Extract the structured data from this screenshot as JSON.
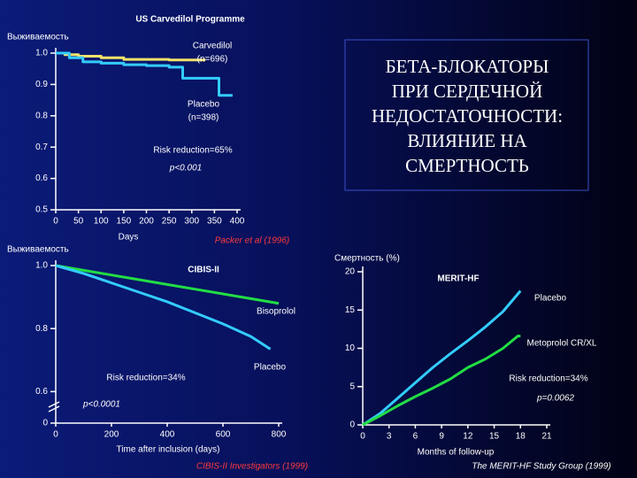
{
  "slide": {
    "heading": [
      "БЕТА-БЛОКАТОРЫ",
      "ПРИ СЕРДЕЧНОЙ",
      "НЕДОСТАТОЧНОСТИ:",
      "ВЛИЯНИЕ НА",
      "СМЕРТНОСТЬ"
    ]
  },
  "chart_data": [
    {
      "type": "line",
      "step": true,
      "title": "US Carvedilol Programme",
      "ylabel": "Выживаемость",
      "xlabel": "Days",
      "xlim": [
        0,
        400
      ],
      "xticks": [
        0,
        50,
        100,
        150,
        200,
        250,
        300,
        350,
        400
      ],
      "ylim": [
        0.5,
        1.0
      ],
      "yticks": [
        {
          "value": 1.0,
          "label": "1.0"
        },
        0.9,
        0.8,
        0.7,
        0.6,
        0.5
      ],
      "series": [
        {
          "name": "Carvedilol",
          "note": "(n=696)",
          "color": "#f2e36a",
          "x": [
            0,
            20,
            50,
            100,
            150,
            200,
            250,
            300,
            330
          ],
          "values": [
            1.0,
            0.995,
            0.99,
            0.985,
            0.98,
            0.98,
            0.978,
            0.978,
            0.978
          ]
        },
        {
          "name": "Placebo",
          "note": "(n=398)",
          "color": "#33ccff",
          "x": [
            0,
            30,
            60,
            100,
            150,
            200,
            250,
            280,
            330,
            360,
            390
          ],
          "values": [
            1.0,
            0.985,
            0.972,
            0.968,
            0.963,
            0.96,
            0.955,
            0.92,
            0.92,
            0.865,
            0.865
          ]
        }
      ],
      "annotations": [
        "Risk reduction=65%",
        "p<0.001"
      ],
      "source": "Packer et al (1996)"
    },
    {
      "type": "line",
      "axis_break": true,
      "title": "CIBIS-II",
      "ylabel": "Выживаемость",
      "xlabel": "Time after inclusion (days)",
      "xlim": [
        0,
        800
      ],
      "xticks": [
        0,
        200,
        400,
        600,
        800
      ],
      "ylim": [
        0.5,
        1.0
      ],
      "yticks": [
        {
          "value": 1.0,
          "label": "1.0"
        },
        0.8,
        0.6,
        0
      ],
      "series": [
        {
          "name": "Bisoprolol",
          "color": "#22dd44",
          "x": [
            0,
            100,
            200,
            300,
            400,
            500,
            600,
            700,
            800
          ],
          "values": [
            1.0,
            0.985,
            0.97,
            0.955,
            0.94,
            0.925,
            0.91,
            0.895,
            0.88
          ]
        },
        {
          "name": "Placebo",
          "color": "#33ccff",
          "x": [
            0,
            100,
            200,
            300,
            400,
            500,
            600,
            700,
            770
          ],
          "values": [
            1.0,
            0.975,
            0.945,
            0.915,
            0.885,
            0.85,
            0.815,
            0.775,
            0.735
          ]
        }
      ],
      "annotations": [
        "Risk reduction=34%",
        "p<0.0001"
      ],
      "source": "CIBIS-II Investigators (1999)"
    },
    {
      "type": "line",
      "title": "MERIT-HF",
      "ylabel": "Смертность (%)",
      "xlabel": "Months of follow-up",
      "xlim": [
        0,
        21
      ],
      "xticks": [
        0,
        3,
        6,
        9,
        12,
        15,
        18,
        21
      ],
      "ylim": [
        0,
        20
      ],
      "yticks": [
        0,
        5,
        10,
        15,
        20
      ],
      "series": [
        {
          "name": "Placebo",
          "color": "#33ccff",
          "x": [
            0,
            2,
            4,
            6,
            8,
            10,
            12,
            14,
            16,
            18
          ],
          "values": [
            0,
            1.5,
            3.5,
            5.5,
            7.5,
            9.3,
            11,
            12.8,
            14.8,
            17.5
          ]
        },
        {
          "name": "Metoprolol CR/XL",
          "color": "#22dd44",
          "x": [
            0,
            2,
            4,
            6,
            8,
            10,
            12,
            14,
            16,
            17.7,
            18
          ],
          "values": [
            0,
            1.2,
            2.5,
            3.7,
            4.8,
            6,
            7.5,
            8.6,
            10,
            11.6,
            11.6
          ]
        }
      ],
      "annotations": [
        "Risk reduction=34%",
        "p=0.0062"
      ],
      "source": "The MERIT-HF Study Group (1999)"
    }
  ]
}
